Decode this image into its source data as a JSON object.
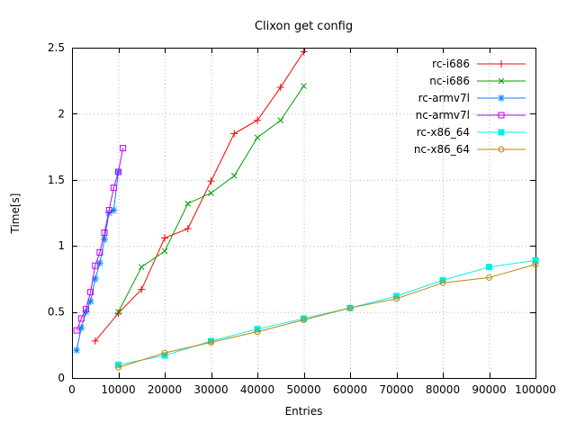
{
  "chart_data": {
    "type": "line",
    "title": "Clixon get config",
    "xlabel": "Entries",
    "ylabel": "Time[s]",
    "xlim": [
      0,
      100000
    ],
    "ylim": [
      0,
      2.5
    ],
    "xticks": [
      0,
      10000,
      20000,
      30000,
      40000,
      50000,
      60000,
      70000,
      80000,
      90000,
      100000
    ],
    "yticks": [
      0,
      0.5,
      1,
      1.5,
      2,
      2.5
    ],
    "grid": true,
    "legend_position": "top-right-inside",
    "series": [
      {
        "name": "rc-i686",
        "color": "#ff0000",
        "marker": "plus",
        "points": [
          [
            5000,
            0.28
          ],
          [
            10000,
            0.49
          ],
          [
            15000,
            0.67
          ],
          [
            20000,
            1.06
          ],
          [
            25000,
            1.13
          ],
          [
            30000,
            1.49
          ],
          [
            35000,
            1.85
          ],
          [
            40000,
            1.95
          ],
          [
            45000,
            2.2
          ],
          [
            50000,
            2.47
          ]
        ]
      },
      {
        "name": "nc-i686",
        "color": "#00a000",
        "marker": "cross",
        "points": [
          [
            10000,
            0.5
          ],
          [
            15000,
            0.84
          ],
          [
            20000,
            0.96
          ],
          [
            25000,
            1.32
          ],
          [
            30000,
            1.4
          ],
          [
            35000,
            1.53
          ],
          [
            40000,
            1.82
          ],
          [
            45000,
            1.95
          ],
          [
            50000,
            2.21
          ]
        ]
      },
      {
        "name": "rc-armv7l",
        "color": "#0080ff",
        "marker": "asterisk",
        "points": [
          [
            1000,
            0.21
          ],
          [
            2000,
            0.38
          ],
          [
            3000,
            0.5
          ],
          [
            4000,
            0.58
          ],
          [
            5000,
            0.75
          ],
          [
            6000,
            0.87
          ],
          [
            7000,
            1.05
          ],
          [
            8000,
            1.25
          ],
          [
            9000,
            1.27
          ],
          [
            10000,
            1.56
          ]
        ]
      },
      {
        "name": "nc-armv7l",
        "color": "#c000ff",
        "marker": "square-open",
        "points": [
          [
            1000,
            0.36
          ],
          [
            2000,
            0.45
          ],
          [
            3000,
            0.52
          ],
          [
            4000,
            0.65
          ],
          [
            5000,
            0.85
          ],
          [
            6000,
            0.95
          ],
          [
            7000,
            1.1
          ],
          [
            8000,
            1.27
          ],
          [
            9000,
            1.44
          ],
          [
            10000,
            1.56
          ],
          [
            11000,
            1.74
          ]
        ]
      },
      {
        "name": "rc-x86_64",
        "color": "#00eeee",
        "marker": "square-filled",
        "points": [
          [
            10000,
            0.1
          ],
          [
            20000,
            0.17
          ],
          [
            30000,
            0.28
          ],
          [
            40000,
            0.37
          ],
          [
            50000,
            0.45
          ],
          [
            60000,
            0.53
          ],
          [
            70000,
            0.62
          ],
          [
            80000,
            0.74
          ],
          [
            90000,
            0.84
          ],
          [
            100000,
            0.89
          ]
        ]
      },
      {
        "name": "nc-x86_64",
        "color": "#b8860b",
        "marker": "circle-open",
        "points": [
          [
            10000,
            0.08
          ],
          [
            20000,
            0.19
          ],
          [
            30000,
            0.27
          ],
          [
            40000,
            0.35
          ],
          [
            50000,
            0.44
          ],
          [
            60000,
            0.53
          ],
          [
            70000,
            0.6
          ],
          [
            80000,
            0.72
          ],
          [
            90000,
            0.76
          ],
          [
            100000,
            0.86
          ]
        ]
      }
    ]
  }
}
